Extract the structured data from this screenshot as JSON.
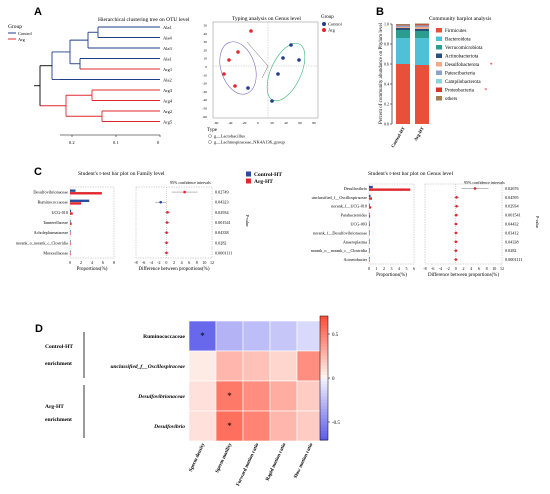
{
  "panels": {
    "a": {
      "letter": "A",
      "tree_title": "Hierarchical clustering tree on OTU level",
      "legend_title": "Group",
      "legend_items": [
        {
          "label": "Control",
          "color": "#1f3c88"
        },
        {
          "label": "Arg",
          "color": "#e0282e"
        }
      ],
      "tips": [
        {
          "label": "Ala1",
          "color": "#1f3c88"
        },
        {
          "label": "Ala4",
          "color": "#1f3c88"
        },
        {
          "label": "Ala3",
          "color": "#1f3c88"
        },
        {
          "label": "Ala1",
          "color": "#1f3c88"
        },
        {
          "label": "Arg1",
          "color": "#e0282e"
        },
        {
          "label": "Ala2",
          "color": "#1f3c88"
        },
        {
          "label": "Arg3",
          "color": "#e0282e"
        },
        {
          "label": "Arg4",
          "color": "#e0282e"
        },
        {
          "label": "Arg2",
          "color": "#e0282e"
        },
        {
          "label": "Arg5",
          "color": "#e0282e"
        }
      ],
      "tree_axis_ticks": [
        "0.2",
        "0.1",
        "0"
      ],
      "pca_title": "Typing analysis on Genus level",
      "pca_legend_title": "Group",
      "pca_legend": [
        {
          "label": "Control",
          "color": "#1f3c88"
        },
        {
          "label": "Arg",
          "color": "#e0282e"
        }
      ],
      "pca_x_ticks": [
        "-60",
        "-40",
        "-20",
        "0",
        "20",
        "40",
        "60",
        "80"
      ],
      "pca_y_ticks": [
        "50",
        "40",
        "30",
        "20",
        "10",
        "0",
        "-10",
        "-20",
        "-30",
        "-40",
        "-50",
        "-60"
      ],
      "type_title": "Type",
      "type_items": [
        "g__Lactobacillus",
        "g__Lachnospiraceae_NK4A136_group"
      ]
    },
    "b": {
      "letter": "B",
      "title": "Community barplot analysis",
      "ylabel": "Percent of community abundance on Phylum level",
      "y_ticks": [
        "1.0",
        "0.8",
        "0.6",
        "0.4",
        "0.2",
        "0.0"
      ],
      "legend": [
        {
          "label": "Firmicutes",
          "color": "#e8503a",
          "star": false
        },
        {
          "label": "Bacteroidota",
          "color": "#4fc1d6",
          "star": false
        },
        {
          "label": "Verrucomicrobiota",
          "color": "#2a9d8f",
          "star": false
        },
        {
          "label": "Actinobacteriota",
          "color": "#2b4f7a",
          "star": false
        },
        {
          "label": "Desulfobacterota",
          "color": "#f4a988",
          "star": true
        },
        {
          "label": "Patescibacteria",
          "color": "#8aa4c8",
          "star": false
        },
        {
          "label": "Campilobacterota",
          "color": "#8fd3e0",
          "star": false
        },
        {
          "label": "Proteobacteria",
          "color": "#d8342c",
          "star": true
        },
        {
          "label": "others",
          "color": "#a37d52",
          "star": false
        }
      ]
    },
    "c": {
      "letter": "C",
      "family_title": "Student's t-test bar plot on Family level",
      "genus_title": "Student's t-test bar plot on Genus level",
      "ci_label": "95% confidence intervals",
      "legend": [
        {
          "label": "Control-HT",
          "color": "#2b4aa0"
        },
        {
          "label": "Arg-HT",
          "color": "#e0282e"
        }
      ],
      "prop_xlabel": "Proportions(%)",
      "diff_xlabel": "Difference between proportions(%)",
      "pvalue_label": "P-value",
      "family_prop_ticks": [
        "0",
        "2",
        "4",
        "6",
        "8"
      ],
      "family_diff_ticks": [
        "-8",
        "-6",
        "-4",
        "-2",
        "0",
        "2",
        "4",
        "6",
        "8",
        "10",
        "12"
      ],
      "genus_prop_ticks": [
        "0",
        "1",
        "2",
        "3",
        "4",
        "5",
        "6"
      ],
      "genus_diff_ticks": [
        "-8",
        "-6",
        "-4",
        "-2",
        "0",
        "2",
        "4",
        "6",
        "8",
        "10",
        "12"
      ]
    },
    "d": {
      "letter": "D",
      "group1_title": "Control-HT",
      "group1_sub": "enrichment",
      "group2_title": "Arg-HT",
      "group2_sub": "enrichment",
      "colorbar_ticks": [
        "0.5",
        "0",
        "-0.5"
      ]
    }
  },
  "chart_data": [
    {
      "type": "bar",
      "title": "Community barplot analysis",
      "ylabel": "Percent of community abundance on Phylum level",
      "categories": [
        "Control-HT",
        "Arg-HT"
      ],
      "ylim": [
        0,
        1
      ],
      "series": [
        {
          "name": "Firmicutes",
          "values": [
            0.6,
            0.59
          ]
        },
        {
          "name": "Bacteroidota",
          "values": [
            0.26,
            0.27
          ]
        },
        {
          "name": "Verrucomicrobiota",
          "values": [
            0.08,
            0.07
          ]
        },
        {
          "name": "Actinobacteriota",
          "values": [
            0.02,
            0.02
          ]
        },
        {
          "name": "Desulfobacterota",
          "values": [
            0.01,
            0.02
          ]
        },
        {
          "name": "Patescibacteria",
          "values": [
            0.01,
            0.01
          ]
        },
        {
          "name": "Campilobacterota",
          "values": [
            0.005,
            0.005
          ]
        },
        {
          "name": "Proteobacteria",
          "values": [
            0.005,
            0.01
          ]
        },
        {
          "name": "others",
          "values": [
            0.01,
            0.01
          ]
        }
      ]
    },
    {
      "type": "bar",
      "title": "Student's t-test bar plot on Family level",
      "xlabel": "Proportions(%)",
      "categories": [
        "Desulfovibrionaceae",
        "Ruminococcaceae",
        "UCG-010",
        "Tannerellaceae",
        "Acholeplasmataceae",
        "norank_o_norank_c_Clostridia",
        "Moraxellaceae"
      ],
      "series": [
        {
          "name": "Control-HT",
          "values": [
            1.0,
            3.5,
            0.2,
            0.1,
            0.05,
            0.05,
            0.02
          ]
        },
        {
          "name": "Arg-HT",
          "values": [
            5.8,
            2.0,
            0.5,
            0.3,
            0.1,
            0.08,
            0.05
          ]
        }
      ],
      "p_values": [
        "0.02749",
        "0.04323",
        "0.02934",
        "0.001541",
        "0.04338",
        "0.0282",
        "0.0001111"
      ],
      "difference": [
        4.8,
        -1.5,
        0.3,
        0.2,
        0.05,
        0.03,
        0.03
      ]
    },
    {
      "type": "bar",
      "title": "Student's t-test bar plot on Genus level",
      "xlabel": "Proportions(%)",
      "categories": [
        "Desulfovibrio",
        "unclassified_f__Oscillospiraceae",
        "norank_f__UCG-010",
        "Parabacteroides",
        "UCG-003",
        "norank_f__Desulfovibrionaceae",
        "Anaeroplasma",
        "norank_o__norank_c__Clostridia",
        "Acinetobacter"
      ],
      "series": [
        {
          "name": "Control-HT",
          "values": [
            0.5,
            0.2,
            0.1,
            0.05,
            0.05,
            0.03,
            0.02,
            0.02,
            0.01
          ]
        },
        {
          "name": "Arg-HT",
          "values": [
            5.5,
            0.4,
            0.3,
            0.15,
            0.1,
            0.08,
            0.05,
            0.04,
            0.03
          ]
        }
      ],
      "p_values": [
        "0.02676",
        "0.04595",
        "0.02934",
        "0.001541",
        "0.04432",
        "0.03412",
        "0.04338",
        "0.0282",
        "0.0001111"
      ],
      "difference": [
        5.0,
        0.2,
        0.2,
        0.1,
        0.05,
        0.05,
        0.03,
        0.02,
        0.02
      ]
    },
    {
      "type": "heatmap",
      "rows": [
        "Ruminococcaceae",
        "unclassified_f__Oscillospiraceae",
        "Desulfovibrionaceae",
        "Desulfovibrio"
      ],
      "columns": [
        "Sperm density",
        "Sperm motility",
        "Forward motion ratio",
        "Rapid motion ratio",
        "Slow motion ratio"
      ],
      "values": [
        [
          -0.75,
          -0.35,
          -0.3,
          -0.25,
          -0.15
        ],
        [
          0.05,
          0.3,
          0.25,
          0.15,
          0.5
        ],
        [
          0.1,
          0.6,
          0.5,
          0.35,
          0.2
        ],
        [
          0.1,
          0.65,
          0.55,
          0.3,
          0.2
        ]
      ],
      "significant": [
        [
          true,
          false,
          false,
          false,
          false
        ],
        [
          false,
          false,
          false,
          false,
          false
        ],
        [
          false,
          true,
          false,
          false,
          false
        ],
        [
          false,
          true,
          false,
          false,
          false
        ]
      ],
      "colorbar_range": [
        -0.8,
        0.8
      ]
    }
  ]
}
